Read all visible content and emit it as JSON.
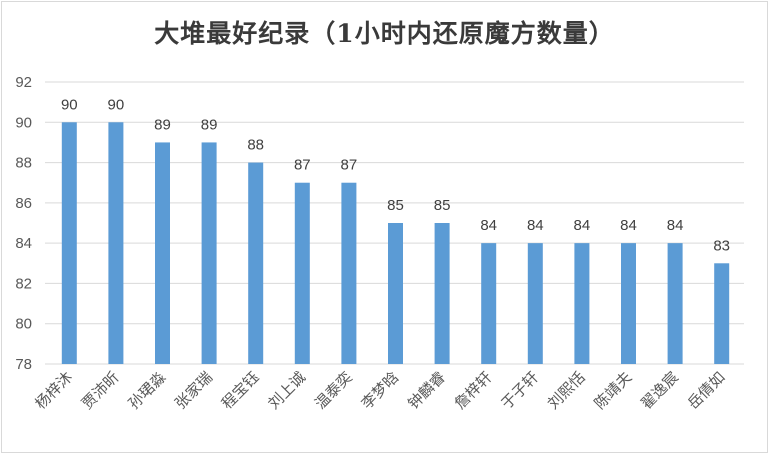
{
  "chart_data": {
    "type": "bar",
    "title": "大堆最好纪录（1小时内还原魔方数量）",
    "xlabel": "",
    "ylabel": "",
    "ylim": [
      78,
      92
    ],
    "yticks": [
      78,
      80,
      82,
      84,
      86,
      88,
      90,
      92
    ],
    "grid": true,
    "legend": "none",
    "bar_color": "#5b9bd5",
    "categories": [
      "杨梓沐",
      "贾沛昕",
      "孙珺淼",
      "张家瑞",
      "程宝钰",
      "刘上诚",
      "温泰奕",
      "李梦晗",
      "钟麟睿",
      "詹梓轩",
      "于子轩",
      "刘熙恬",
      "陈靖夫",
      "翟逸宸",
      "岳倩如"
    ],
    "values": [
      90,
      90,
      89,
      89,
      88,
      87,
      87,
      85,
      85,
      84,
      84,
      84,
      84,
      84,
      83
    ]
  }
}
